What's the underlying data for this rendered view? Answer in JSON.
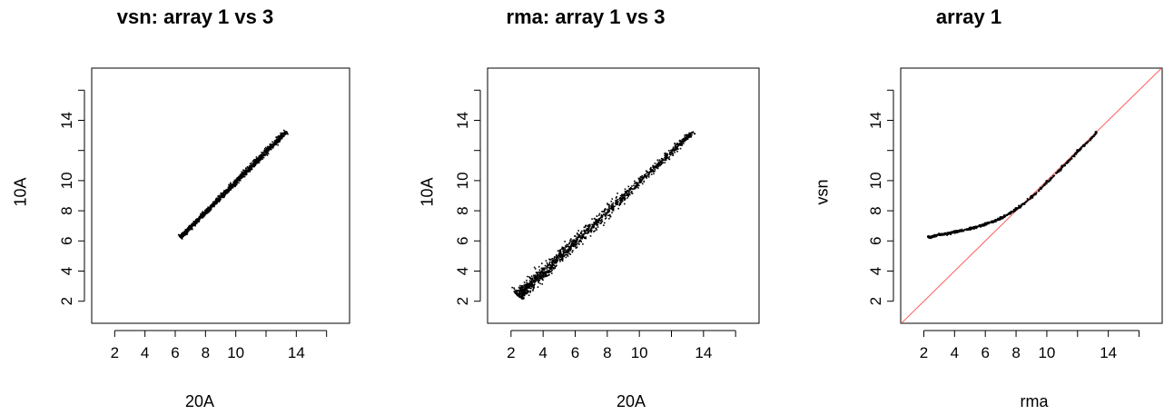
{
  "chart_data": [
    {
      "type": "scatter",
      "title": "vsn: array 1 vs 3",
      "xlabel": "20A",
      "ylabel": "10A",
      "xlim": [
        1.5,
        16.5
      ],
      "ylim": [
        1.5,
        16.5
      ],
      "x_ticks": [
        2,
        4,
        6,
        8,
        10,
        14
      ],
      "y_ticks": [
        2,
        4,
        6,
        8,
        10,
        14
      ],
      "cloud": {
        "x_start": 6.3,
        "x_end": 13.3,
        "spread_low": 0.08,
        "spread_high": 0.12
      },
      "series": [
        {
          "x": [
            6.3,
            7.0,
            8.0,
            9.0,
            10.0,
            11.0,
            12.0,
            13.3
          ],
          "y": [
            6.3,
            7.0,
            8.0,
            9.0,
            10.0,
            11.0,
            12.0,
            13.3
          ]
        }
      ],
      "point_color": "#000000"
    },
    {
      "type": "scatter",
      "title": "rma: array 1 vs 3",
      "xlabel": "20A",
      "ylabel": "10A",
      "xlim": [
        1.5,
        16.5
      ],
      "ylim": [
        1.5,
        16.5
      ],
      "x_ticks": [
        2,
        4,
        6,
        8,
        10,
        14
      ],
      "y_ticks": [
        2,
        4,
        6,
        8,
        10,
        14
      ],
      "cloud": {
        "x_start": 2.4,
        "x_end": 13.3,
        "spread_low": 0.28,
        "spread_high": 0.12
      },
      "series": [
        {
          "x": [
            2.4,
            4.0,
            6.0,
            8.0,
            10.0,
            12.0,
            13.3
          ],
          "y": [
            2.4,
            4.0,
            6.0,
            8.0,
            10.0,
            12.0,
            13.3
          ]
        }
      ],
      "point_color": "#000000"
    },
    {
      "type": "scatter",
      "title": "array 1",
      "xlabel": "rma",
      "ylabel": "vsn",
      "xlim": [
        1.5,
        16.5
      ],
      "ylim": [
        1.5,
        16.5
      ],
      "x_ticks": [
        2,
        4,
        6,
        8,
        10,
        14
      ],
      "y_ticks": [
        2,
        4,
        6,
        8,
        10,
        14
      ],
      "series": [
        {
          "x": [
            2.3,
            3.0,
            4.0,
            5.0,
            6.0,
            7.0,
            8.0,
            9.0,
            10.0,
            11.0,
            12.0,
            13.2
          ],
          "y": [
            6.28,
            6.45,
            6.63,
            6.85,
            7.15,
            7.55,
            8.15,
            8.95,
            9.95,
            10.95,
            12.0,
            13.2
          ]
        }
      ],
      "reference_line": {
        "slope": 1,
        "intercept": 0,
        "color": "#ff5a5a"
      },
      "point_color": "#000000"
    }
  ]
}
